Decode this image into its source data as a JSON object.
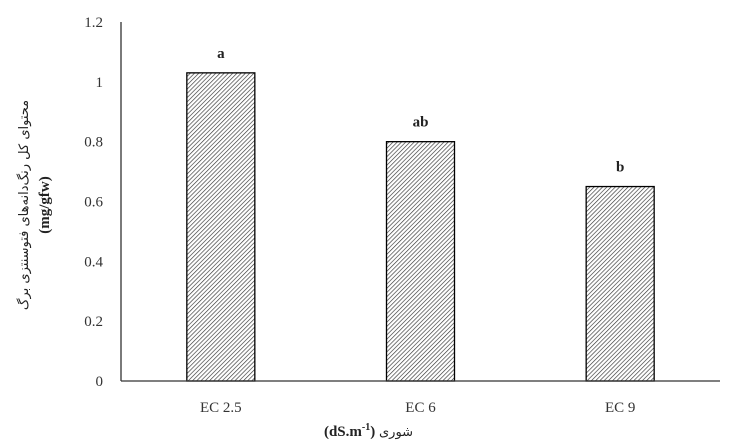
{
  "chart_data": {
    "type": "bar",
    "categories": [
      "EC 2.5",
      "EC 6",
      "EC 9"
    ],
    "values": [
      1.03,
      0.8,
      0.65
    ],
    "significance_labels": [
      "a",
      "ab",
      "b"
    ],
    "ylim": [
      0,
      1.2
    ],
    "yticks": [
      "0",
      "0.2",
      "0.4",
      "0.6",
      "0.8",
      "1",
      "1.2"
    ],
    "ylabel": "محتوای کل رنگ‌دانه‌های فتوسنتزی برگ",
    "ylabel_unit": "(mg/gfw)",
    "xlabel": "شوری",
    "xlabel_unit": "(dS.m-1)",
    "bar_fill": "hatched",
    "bar_color": "#000000",
    "grid": false,
    "legend": "none"
  }
}
